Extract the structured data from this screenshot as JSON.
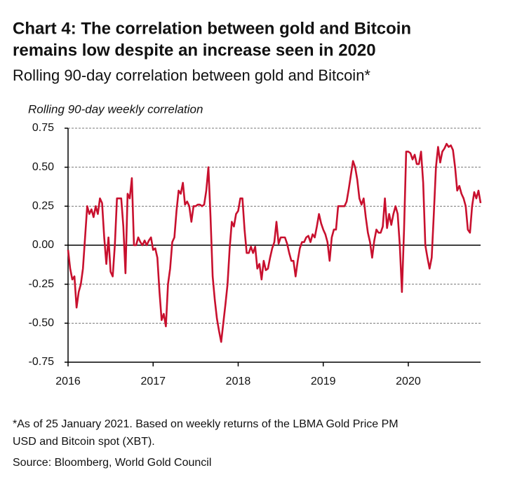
{
  "chart_data": {
    "type": "line",
    "title": [
      "Chart 4: The correlation between gold and Bitcoin",
      "remains low despite an increase seen in 2020"
    ],
    "subtitle": "Rolling 90-day correlation between gold and Bitcoin*",
    "y_axis_label": "Rolling 90-day weekly correlation",
    "footnote": [
      "*As of 25 January 2021. Based on weekly returns of the LBMA Gold Price PM",
      "USD and Bitcoin spot (XBT)."
    ],
    "source": "Source: Bloomberg, World Gold Council",
    "xlim": [
      2016,
      2020.85
    ],
    "xticks": [
      2016,
      2017,
      2018,
      2019,
      2020
    ],
    "ylim": [
      -0.75,
      0.75
    ],
    "yticks": [
      {
        "value": -0.75,
        "label": "-0.75"
      },
      {
        "value": -0.5,
        "label": "-0.50"
      },
      {
        "value": -0.25,
        "label": "-0.25"
      },
      {
        "value": 0,
        "label": "0.00"
      },
      {
        "value": 0.25,
        "label": "0.25"
      },
      {
        "value": 0.5,
        "label": "0.50"
      },
      {
        "value": 0.75,
        "label": "0.75"
      }
    ],
    "grid": true,
    "x": [
      2016,
      2016.025,
      2016.05,
      2016.075,
      2016.1,
      2016.125,
      2016.15,
      2016.175,
      2016.2,
      2016.225,
      2016.25,
      2016.275,
      2016.3,
      2016.325,
      2016.35,
      2016.375,
      2016.4,
      2016.425,
      2016.45,
      2016.475,
      2016.5,
      2016.525,
      2016.55,
      2016.575,
      2016.6,
      2016.625,
      2016.65,
      2016.675,
      2016.7,
      2016.725,
      2016.75,
      2016.775,
      2016.8,
      2016.825,
      2016.85,
      2016.875,
      2016.9,
      2016.925,
      2016.95,
      2016.975,
      2017,
      2017.025,
      2017.05,
      2017.075,
      2017.1,
      2017.125,
      2017.15,
      2017.175,
      2017.2,
      2017.225,
      2017.25,
      2017.275,
      2017.3,
      2017.325,
      2017.35,
      2017.375,
      2017.4,
      2017.425,
      2017.45,
      2017.475,
      2017.5,
      2017.525,
      2017.55,
      2017.575,
      2017.6,
      2017.625,
      2017.65,
      2017.675,
      2017.7,
      2017.725,
      2017.75,
      2017.775,
      2017.8,
      2017.825,
      2017.85,
      2017.875,
      2017.9,
      2017.925,
      2017.95,
      2017.975,
      2018,
      2018.025,
      2018.05,
      2018.075,
      2018.1,
      2018.125,
      2018.15,
      2018.175,
      2018.2,
      2018.225,
      2018.25,
      2018.275,
      2018.3,
      2018.325,
      2018.35,
      2018.375,
      2018.4,
      2018.425,
      2018.45,
      2018.475,
      2018.5,
      2018.525,
      2018.55,
      2018.575,
      2018.6,
      2018.625,
      2018.65,
      2018.675,
      2018.7,
      2018.725,
      2018.75,
      2018.775,
      2018.8,
      2018.825,
      2018.85,
      2018.875,
      2018.9,
      2018.925,
      2018.95,
      2018.975,
      2019,
      2019.025,
      2019.05,
      2019.075,
      2019.1,
      2019.125,
      2019.15,
      2019.175,
      2019.2,
      2019.225,
      2019.25,
      2019.275,
      2019.3,
      2019.325,
      2019.35,
      2019.375,
      2019.4,
      2019.425,
      2019.45,
      2019.475,
      2019.5,
      2019.525,
      2019.55,
      2019.575,
      2019.6,
      2019.625,
      2019.65,
      2019.675,
      2019.7,
      2019.725,
      2019.75,
      2019.775,
      2019.8,
      2019.825,
      2019.85,
      2019.875,
      2019.9,
      2019.925,
      2019.95,
      2019.975,
      2020,
      2020.025,
      2020.05,
      2020.075,
      2020.1,
      2020.125,
      2020.15,
      2020.175,
      2020.2,
      2020.225,
      2020.25,
      2020.275,
      2020.3,
      2020.325,
      2020.35,
      2020.375,
      2020.4,
      2020.425,
      2020.45,
      2020.475,
      2020.5,
      2020.525,
      2020.55,
      2020.575,
      2020.6,
      2020.625,
      2020.65,
      2020.675,
      2020.7,
      2020.725,
      2020.75,
      2020.775,
      2020.8,
      2020.825,
      2020.85
    ],
    "series": [
      {
        "color": "#c8102e",
        "values": [
          -0.03,
          -0.15,
          -0.22,
          -0.2,
          -0.4,
          -0.3,
          -0.25,
          -0.15,
          0.05,
          0.25,
          0.2,
          0.23,
          0.18,
          0.25,
          0.2,
          0.3,
          0.27,
          0.05,
          -0.12,
          0.05,
          -0.17,
          -0.2,
          0.0,
          0.3,
          0.3,
          0.3,
          0.12,
          -0.18,
          0.33,
          0.3,
          0.43,
          0.0,
          0.0,
          0.05,
          0.02,
          0.0,
          0.03,
          0.0,
          0.03,
          0.05,
          -0.03,
          -0.02,
          -0.08,
          -0.3,
          -0.48,
          -0.44,
          -0.52,
          -0.25,
          -0.15,
          0.02,
          0.05,
          0.22,
          0.35,
          0.33,
          0.4,
          0.26,
          0.28,
          0.25,
          0.15,
          0.25,
          0.25,
          0.26,
          0.26,
          0.25,
          0.26,
          0.35,
          0.5,
          0.18,
          -0.2,
          -0.35,
          -0.47,
          -0.55,
          -0.62,
          -0.5,
          -0.38,
          -0.25,
          -0.02,
          0.15,
          0.12,
          0.2,
          0.22,
          0.3,
          0.3,
          0.1,
          -0.05,
          -0.05,
          -0.01,
          -0.05,
          -0.01,
          -0.15,
          -0.12,
          -0.22,
          -0.1,
          -0.16,
          -0.15,
          -0.08,
          -0.02,
          0.02,
          0.15,
          0.01,
          0.05,
          0.05,
          0.05,
          0.01,
          -0.05,
          -0.1,
          -0.1,
          -0.2,
          -0.1,
          -0.02,
          0.02,
          0.02,
          0.05,
          0.06,
          0.02,
          0.07,
          0.05,
          0.12,
          0.2,
          0.14,
          0.1,
          0.07,
          0.02,
          -0.1,
          0.05,
          0.1,
          0.1,
          0.25,
          0.25,
          0.25,
          0.25,
          0.28,
          0.36,
          0.45,
          0.54,
          0.5,
          0.42,
          0.3,
          0.26,
          0.3,
          0.18,
          0.08,
          0.02,
          -0.08,
          0.03,
          0.1,
          0.08,
          0.08,
          0.12,
          0.3,
          0.11,
          0.2,
          0.13,
          0.2,
          0.25,
          0.2,
          0.0,
          -0.3,
          0.1,
          0.6,
          0.6,
          0.59,
          0.55,
          0.58,
          0.52,
          0.52,
          0.6,
          0.4,
          0.0,
          -0.08,
          -0.15,
          -0.08,
          0.2,
          0.5,
          0.63,
          0.53,
          0.6,
          0.62,
          0.65,
          0.63,
          0.64,
          0.61,
          0.5,
          0.35,
          0.38,
          0.33,
          0.3,
          0.25,
          0.1,
          0.08,
          0.25,
          0.34,
          0.3,
          0.35,
          0.27
        ]
      }
    ]
  }
}
